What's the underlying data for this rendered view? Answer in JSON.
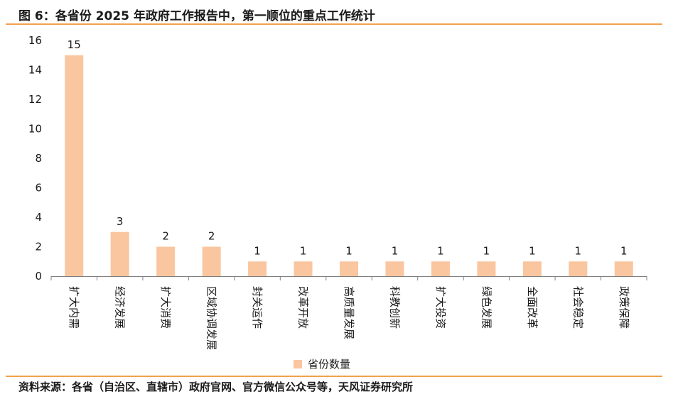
{
  "title": "图 6：各省份 2025 年政府工作报告中，第一顺位的重点工作统计",
  "source": "资料来源：各省（自治区、直辖市）政府官网、官方微信公众号等，天风证券研究所",
  "colors": {
    "bar": "#f9c6a0",
    "rule": "#f2a14b",
    "axis": "#7f7f7f"
  },
  "chart_data": {
    "type": "bar",
    "categories": [
      "扩大内需",
      "经济发展",
      "扩大消费",
      "区域协调发展",
      "封关运作",
      "改革开放",
      "高质量发展",
      "科教创新",
      "扩大投资",
      "绿色发展",
      "全面改革",
      "社会稳定",
      "政策保障"
    ],
    "series": [
      {
        "name": "省份数量",
        "values": [
          15,
          3,
          2,
          2,
          1,
          1,
          1,
          1,
          1,
          1,
          1,
          1,
          1
        ]
      }
    ],
    "yticks": [
      "0",
      "2",
      "4",
      "6",
      "8",
      "10",
      "12",
      "14",
      "16"
    ],
    "ylim": [
      0,
      16
    ],
    "data_labels": true,
    "legend_position": "bottom",
    "xlabel": "",
    "ylabel": ""
  }
}
